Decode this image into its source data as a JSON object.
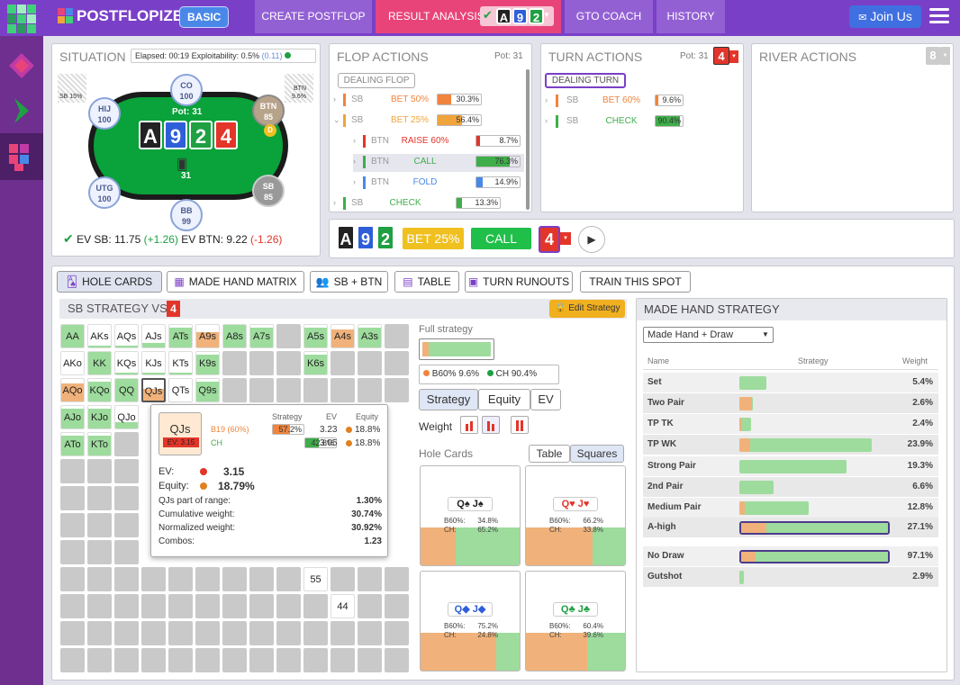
{
  "brand": "POSTFLOPIZER",
  "plan_badge": "BASIC",
  "nav": {
    "create": "CREATE POSTFLOP",
    "result": "RESULT ANALYSIS",
    "coach": "GTO COACH",
    "history": "HISTORY",
    "join": "Join Us",
    "board_cards": [
      {
        "v": "A",
        "c": "#222"
      },
      {
        "v": "9",
        "c": "#2e5fd8"
      },
      {
        "v": "2",
        "c": "#1fa043"
      }
    ]
  },
  "situation": {
    "title": "SITUATION",
    "elapsed": "Elapsed: 00:19",
    "exploit": "Exploitability: 0.5%",
    "exploit_val": "(0.11)",
    "pot": "Pot: 31",
    "chips": "31",
    "sb_pct": "SB 15%",
    "btn_pct": "BTN",
    "btn_pct_val": "9.6%",
    "seats": [
      {
        "name": "HIJ",
        "stack": "100"
      },
      {
        "name": "CO",
        "stack": "100"
      },
      {
        "name": "BTN",
        "stack": "85"
      },
      {
        "name": "UTG",
        "stack": "100"
      },
      {
        "name": "BB",
        "stack": "99"
      },
      {
        "name": "SB",
        "stack": "85"
      }
    ],
    "dealer": "D",
    "ev_sb_label": "EV SB:",
    "ev_sb": "11.75",
    "ev_sb_delta": "(+1.26)",
    "ev_btn_label": "EV BTN:",
    "ev_btn": "9.22",
    "ev_btn_delta": "(-1.26)"
  },
  "flop": {
    "title": "FLOP ACTIONS",
    "pot": "Pot: 31",
    "dealing": "DEALING FLOP",
    "rows": [
      {
        "who": "SB",
        "act": "BET 50%",
        "pct": "30.3%",
        "val": 30.3,
        "color": "#f0843c"
      },
      {
        "who": "SB",
        "act": "BET 25%",
        "pct": "56.4%",
        "val": 56.4,
        "color": "#f0a43c"
      },
      {
        "who": "BTN",
        "act": "RAISE 60%",
        "pct": "8.7%",
        "val": 8.7,
        "color": "#e3352a"
      },
      {
        "who": "BTN",
        "act": "CALL",
        "pct": "76.3%",
        "val": 76.3,
        "color": "#3fae4a"
      },
      {
        "who": "BTN",
        "act": "FOLD",
        "pct": "14.9%",
        "val": 14.9,
        "color": "#4a88e8"
      },
      {
        "who": "SB",
        "act": "CHECK",
        "pct": "13.3%",
        "val": 13.3,
        "color": "#3fae4a"
      }
    ]
  },
  "turn": {
    "title": "TURN ACTIONS",
    "pot": "Pot: 31",
    "card": "4",
    "dealing": "DEALING TURN",
    "rows": [
      {
        "who": "SB",
        "act": "BET 60%",
        "pct": "9.6%",
        "val": 9.6,
        "color": "#f0843c"
      },
      {
        "who": "SB",
        "act": "CHECK",
        "pct": "90.4%",
        "val": 90.4,
        "color": "#3fae4a"
      }
    ]
  },
  "river": {
    "title": "RIVER ACTIONS",
    "card": "8"
  },
  "line": {
    "bet": "BET 25%",
    "call": "CALL",
    "turn": "4"
  },
  "tabs": [
    "HOLE CARDS",
    "MADE HAND MATRIX",
    "SB + BTN",
    "TABLE",
    "TURN RUNOUTS",
    "TRAIN THIS SPOT"
  ],
  "strategy": {
    "title": "SB STRATEGY VS",
    "turn": "4",
    "edit": "Edit Strategy",
    "full": "Full strategy",
    "b60": "B60%",
    "b60_val": "9.6%",
    "ch": "CH",
    "ch_val": "90.4%",
    "modes": [
      "Strategy",
      "Equity",
      "EV"
    ],
    "weight": "Weight",
    "holecards": "Hole Cards",
    "view": [
      "Table",
      "Squares"
    ]
  },
  "matrix": [
    {
      "t": "AA",
      "r": 0,
      "c": 0,
      "g": 1,
      "o": 0
    },
    {
      "t": "AKs",
      "r": 0,
      "c": 1,
      "g": 0.1,
      "o": 0
    },
    {
      "t": "AQs",
      "r": 0,
      "c": 2,
      "g": 0.1,
      "o": 0
    },
    {
      "t": "AJs",
      "r": 0,
      "c": 3,
      "g": 0.2,
      "o": 0
    },
    {
      "t": "ATs",
      "r": 0,
      "c": 4,
      "g": 0.9,
      "o": 0
    },
    {
      "t": "A9s",
      "r": 0,
      "c": 5,
      "g": 0.3,
      "o": 0.7
    },
    {
      "t": "A8s",
      "r": 0,
      "c": 6,
      "g": 1,
      "o": 0
    },
    {
      "t": "A7s",
      "r": 0,
      "c": 7,
      "g": 0.9,
      "o": 0
    },
    {
      "t": "",
      "r": 0,
      "c": 8,
      "g": 0,
      "o": 0
    },
    {
      "t": "A5s",
      "r": 0,
      "c": 9,
      "g": 0.9,
      "o": 0
    },
    {
      "t": "A4s",
      "r": 0,
      "c": 10,
      "g": 0.2,
      "o": 0.8
    },
    {
      "t": "A3s",
      "r": 0,
      "c": 11,
      "g": 0.9,
      "o": 0
    },
    {
      "t": "AKo",
      "r": 1,
      "c": 0,
      "g": 0,
      "o": 0
    },
    {
      "t": "KK",
      "r": 1,
      "c": 1,
      "g": 1,
      "o": 0
    },
    {
      "t": "KQs",
      "r": 1,
      "c": 2,
      "g": 0.1,
      "o": 0
    },
    {
      "t": "KJs",
      "r": 1,
      "c": 3,
      "g": 0.1,
      "o": 0
    },
    {
      "t": "KTs",
      "r": 1,
      "c": 4,
      "g": 0.1,
      "o": 0
    },
    {
      "t": "K9s",
      "r": 1,
      "c": 5,
      "g": 0.9,
      "o": 0
    },
    {
      "t": "K6s",
      "r": 1,
      "c": 9,
      "g": 0.9,
      "o": 0
    },
    {
      "t": "AQo",
      "r": 2,
      "c": 0,
      "g": 0.2,
      "o": 0.8
    },
    {
      "t": "KQo",
      "r": 2,
      "c": 1,
      "g": 0.9,
      "o": 0
    },
    {
      "t": "QQ",
      "r": 2,
      "c": 2,
      "g": 1,
      "o": 0
    },
    {
      "t": "QJs",
      "r": 2,
      "c": 3,
      "g": 0.43,
      "o": 0.57
    },
    {
      "t": "QTs",
      "r": 2,
      "c": 4,
      "g": 0,
      "o": 0
    },
    {
      "t": "Q9s",
      "r": 2,
      "c": 5,
      "g": 0.9,
      "o": 0
    },
    {
      "t": "AJo",
      "r": 3,
      "c": 0,
      "g": 0.9,
      "o": 0
    },
    {
      "t": "KJo",
      "r": 3,
      "c": 1,
      "g": 0.9,
      "o": 0
    },
    {
      "t": "QJo",
      "r": 3,
      "c": 2,
      "g": 0.3,
      "o": 0
    },
    {
      "t": "ATo",
      "r": 4,
      "c": 0,
      "g": 0.9,
      "o": 0
    },
    {
      "t": "KTo",
      "r": 4,
      "c": 1,
      "g": 0.9,
      "o": 0
    },
    {
      "t": "55",
      "r": 9,
      "c": 9,
      "g": 0,
      "o": 0
    },
    {
      "t": "44",
      "r": 10,
      "c": 10,
      "g": 0,
      "o": 0
    }
  ],
  "tooltip": {
    "hand": "QJs",
    "ev_badge": "EV: 3.15",
    "col_strat": "Strategy",
    "col_ev": "EV",
    "col_eq": "Equity",
    "rows": [
      {
        "act": "B19 (60%)",
        "pct": "57.2%",
        "val": 57.2,
        "ev": "3.23",
        "eq": "18.8%",
        "color": "#f0843c"
      },
      {
        "act": "CH",
        "pct": "42.8%",
        "val": 42.8,
        "ev": "3.05",
        "eq": "18.8%",
        "color": "#3fae4a"
      }
    ],
    "ev_label": "EV:",
    "ev": "3.15",
    "eq_label": "Equity:",
    "eq": "18.79%",
    "stats": [
      {
        "k": "QJs part of range:",
        "v": "1.30%"
      },
      {
        "k": "Cumulative weight:",
        "v": "30.74%"
      },
      {
        "k": "Normalized weight:",
        "v": "30.92%"
      },
      {
        "k": "Combos:",
        "v": "1.23"
      }
    ]
  },
  "combos": [
    {
      "cards": "Q♠ J♠",
      "color": "#222",
      "b60": "34.8%",
      "ch": "65.2%",
      "o": 34.8
    },
    {
      "cards": "Q♥ J♥",
      "color": "#e3352a",
      "b60": "66.2%",
      "ch": "33.8%",
      "o": 66.2
    },
    {
      "cards": "Q◆ J◆",
      "color": "#2e5fd8",
      "b60": "75.2%",
      "ch": "24.8%",
      "o": 75.2
    },
    {
      "cards": "Q♣ J♣",
      "color": "#1fa043",
      "b60": "60.4%",
      "ch": "39.6%",
      "o": 60.4
    }
  ],
  "combo_labels": {
    "b60": "B60%:",
    "ch": "CH:"
  },
  "mhs": {
    "title": "MADE HAND STRATEGY",
    "select": "Made Hand + Draw",
    "col_name": "Name",
    "col_strat": "Strategy",
    "col_weight": "Weight",
    "rows": [
      {
        "name": "Set",
        "w": "5.4%",
        "len": 0.18,
        "o": 0.0
      },
      {
        "name": "Two Pair",
        "w": "2.6%",
        "len": 0.09,
        "o": 0.9
      },
      {
        "name": "TP TK",
        "w": "2.4%",
        "len": 0.08,
        "o": 0.2
      },
      {
        "name": "TP WK",
        "w": "23.9%",
        "len": 0.88,
        "o": 0.07
      },
      {
        "name": "Strong Pair",
        "w": "19.3%",
        "len": 0.71,
        "o": 0.0
      },
      {
        "name": "2nd Pair",
        "w": "6.6%",
        "len": 0.23,
        "o": 0.0
      },
      {
        "name": "Medium Pair",
        "w": "12.8%",
        "len": 0.46,
        "o": 0.05
      },
      {
        "name": "A-high",
        "w": "27.1%",
        "len": 1.0,
        "o": 0.17
      },
      {
        "name": "No Draw",
        "w": "97.1%",
        "len": 1.0,
        "o": 0.1
      },
      {
        "name": "Gutshot",
        "w": "2.9%",
        "len": 0.03,
        "o": 0.0
      }
    ]
  }
}
